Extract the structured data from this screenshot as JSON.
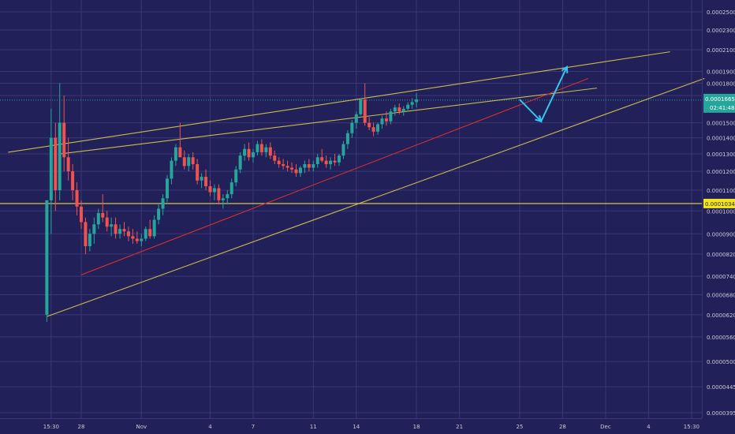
{
  "chart_data": {
    "type": "candlestick",
    "title": "",
    "xlabel": "",
    "ylabel": "",
    "colors": {
      "background": "#222058",
      "grid": "#3a3876",
      "up": "#26a69a",
      "down": "#ef5350",
      "trendline_yellow": "#e6d84a",
      "trendline_red": "#d03030",
      "arrow": "#33c6f0",
      "axis_text": "#c9c9d9",
      "price_tag": "#26a69a",
      "level_tag": "#f5e51c"
    },
    "y_scale": "log",
    "y_range": [
      3.85e-05,
      2.65e-05
    ],
    "y_ticks": [
      "0.00025000",
      "0.00023000",
      "0.00021000",
      "0.00019000",
      "0.00018000",
      "0.00017000",
      "0.00015000",
      "0.00014000",
      "0.00013000",
      "0.00012000",
      "0.00011000",
      "0.00010000",
      "0.00009000",
      "0.00008200",
      "0.00007400",
      "0.00006800",
      "0.00006200",
      "0.00005600",
      "0.00005000",
      "0.00004450",
      "0.00003950"
    ],
    "x_ticks": [
      {
        "label": "15:30",
        "slot": 3
      },
      {
        "label": "28",
        "slot": 10
      },
      {
        "label": "Nov",
        "slot": 24
      },
      {
        "label": "4",
        "slot": 40
      },
      {
        "label": "7",
        "slot": 50
      },
      {
        "label": "11",
        "slot": 64
      },
      {
        "label": "14",
        "slot": 74
      },
      {
        "label": "18",
        "slot": 88
      },
      {
        "label": "21",
        "slot": 98
      },
      {
        "label": "25",
        "slot": 112
      },
      {
        "label": "28",
        "slot": 122
      },
      {
        "label": "Dec",
        "slot": 132
      },
      {
        "label": "4",
        "slot": 142
      },
      {
        "label": "15:30",
        "slot": 152
      }
    ],
    "current_price": {
      "label": "0.00016651",
      "countdown": "02:41:48",
      "value": 0.00016651
    },
    "level": {
      "label": "0.00010345",
      "value": 0.00010345
    },
    "candles": [
      [
        6.2e-05,
        0.000105,
        6e-05,
        0.000105
      ],
      [
        0.000105,
        0.00016,
        9e-05,
        0.00014
      ],
      [
        0.00014,
        0.00015,
        0.0001,
        0.00011
      ],
      [
        0.00011,
        0.00018,
        0.000105,
        0.00015
      ],
      [
        0.00015,
        0.00017,
        0.00012,
        0.000128
      ],
      [
        0.000128,
        0.00014,
        0.000115,
        0.00012
      ],
      [
        0.00012,
        0.000124,
        0.000105,
        0.00011
      ],
      [
        0.00011,
        0.000114,
        9.8e-05,
        0.000102
      ],
      [
        0.000102,
        0.000105,
        9.2e-05,
        9.5e-05
      ],
      [
        9.5e-05,
        9.7e-05,
        8.2e-05,
        8.5e-05
      ],
      [
        8.5e-05,
        9.2e-05,
        8.3e-05,
        9e-05
      ],
      [
        9e-05,
        9.7e-05,
        8.6e-05,
        9.4e-05
      ],
      [
        9.4e-05,
        0.000101,
        9.2e-05,
        9.9e-05
      ],
      [
        9.9e-05,
        0.000108,
        9.5e-05,
        9.7e-05
      ],
      [
        9.7e-05,
        0.0001,
        9.1e-05,
        9.3e-05
      ],
      [
        9.3e-05,
        9.7e-05,
        8.9e-05,
        9.4e-05
      ],
      [
        9.4e-05,
        9.7e-05,
        8.8e-05,
        9e-05
      ],
      [
        9e-05,
        9.4e-05,
        8.8e-05,
        9.2e-05
      ],
      [
        9.2e-05,
        9.5e-05,
        8.9e-05,
        9.1e-05
      ],
      [
        9.1e-05,
        9.3e-05,
        8.7e-05,
        8.9e-05
      ],
      [
        8.9e-05,
        9.2e-05,
        8.6e-05,
        8.8e-05
      ],
      [
        8.8e-05,
        9.1e-05,
        8.6e-05,
        8.7e-05
      ],
      [
        8.7e-05,
        9e-05,
        8.5e-05,
        8.8e-05
      ],
      [
        8.8e-05,
        9.3e-05,
        8.7e-05,
        9.2e-05
      ],
      [
        9.2e-05,
        9.6e-05,
        8.8e-05,
        8.9e-05
      ],
      [
        8.9e-05,
        9.8e-05,
        8.8e-05,
        9.6e-05
      ],
      [
        9.6e-05,
        0.000103,
        9.4e-05,
        0.000101
      ],
      [
        0.000101,
        0.000108,
        9.8e-05,
        0.000106
      ],
      [
        0.000106,
        0.000118,
        0.000104,
        0.000116
      ],
      [
        0.000116,
        0.000128,
        0.000113,
        0.000126
      ],
      [
        0.000126,
        0.000136,
        0.000123,
        0.000134
      ],
      [
        0.000134,
        0.00015,
        0.000128,
        0.000128
      ],
      [
        0.000128,
        0.000132,
        0.000121,
        0.000123
      ],
      [
        0.000123,
        0.00013,
        0.00012,
        0.000128
      ],
      [
        0.000128,
        0.000131,
        0.000121,
        0.000124
      ],
      [
        0.000124,
        0.000127,
        0.000113,
        0.000115
      ],
      [
        0.000115,
        0.000119,
        0.000111,
        0.000117
      ],
      [
        0.000117,
        0.000121,
        0.00011,
        0.000112
      ],
      [
        0.000112,
        0.000115,
        0.000107,
        0.000109
      ],
      [
        0.000109,
        0.000113,
        0.000105,
        0.000111
      ],
      [
        0.000111,
        0.000113,
        0.000103,
        0.000105
      ],
      [
        0.000105,
        0.000108,
        0.000101,
        0.000106
      ],
      [
        0.000106,
        0.00011,
        0.000103,
        0.000108
      ],
      [
        0.000108,
        0.000116,
        0.000106,
        0.000114
      ],
      [
        0.000114,
        0.000123,
        0.000112,
        0.000121
      ],
      [
        0.000121,
        0.000131,
        0.000119,
        0.000129
      ],
      [
        0.000129,
        0.000136,
        0.000126,
        0.000133
      ],
      [
        0.000133,
        0.000137,
        0.000126,
        0.000128
      ],
      [
        0.000128,
        0.000133,
        0.000125,
        0.000131
      ],
      [
        0.000131,
        0.000138,
        0.000129,
        0.000136
      ],
      [
        0.000136,
        0.000139,
        0.000129,
        0.000131
      ],
      [
        0.000131,
        0.000136,
        0.000128,
        0.000134
      ],
      [
        0.000134,
        0.000137,
        0.000127,
        0.000129
      ],
      [
        0.000129,
        0.000132,
        0.000124,
        0.000126
      ],
      [
        0.000126,
        0.000128,
        0.000122,
        0.000124
      ],
      [
        0.000124,
        0.000127,
        0.000121,
        0.000123
      ],
      [
        0.000123,
        0.000126,
        0.00012,
        0.000122
      ],
      [
        0.000122,
        0.000125,
        0.000119,
        0.000121
      ],
      [
        0.000121,
        0.000124,
        0.000117,
        0.000119
      ],
      [
        0.000119,
        0.000123,
        0.000117,
        0.000122
      ],
      [
        0.000122,
        0.000126,
        0.000119,
        0.000124
      ],
      [
        0.000124,
        0.000127,
        0.00012,
        0.000122
      ],
      [
        0.000122,
        0.000126,
        0.00012,
        0.000124
      ],
      [
        0.000124,
        0.00013,
        0.000122,
        0.000128
      ],
      [
        0.000128,
        0.000133,
        0.000125,
        0.000126
      ],
      [
        0.000126,
        0.000129,
        0.000122,
        0.000124
      ],
      [
        0.000124,
        0.000128,
        0.000121,
        0.000126
      ],
      [
        0.000126,
        0.00013,
        0.000123,
        0.000125
      ],
      [
        0.000125,
        0.00013,
        0.000123,
        0.000129
      ],
      [
        0.000129,
        0.000138,
        0.000127,
        0.000136
      ],
      [
        0.000136,
        0.000145,
        0.000133,
        0.000143
      ],
      [
        0.000143,
        0.000152,
        0.00014,
        0.00015
      ],
      [
        0.00015,
        0.000158,
        0.000146,
        0.000156
      ],
      [
        0.000156,
        0.000168,
        0.000155,
        0.000167
      ],
      [
        0.000167,
        0.00018,
        0.000148,
        0.00015
      ],
      [
        0.00015,
        0.000154,
        0.000145,
        0.000147
      ],
      [
        0.000147,
        0.00015,
        0.000141,
        0.000144
      ],
      [
        0.000144,
        0.00015,
        0.000142,
        0.000149
      ],
      [
        0.000149,
        0.000155,
        0.000146,
        0.000153
      ],
      [
        0.000153,
        0.000158,
        0.000148,
        0.000151
      ],
      [
        0.000151,
        0.00016,
        0.000149,
        0.000158
      ],
      [
        0.000158,
        0.000163,
        0.000155,
        0.000161
      ],
      [
        0.000161,
        0.000164,
        0.000156,
        0.000158
      ],
      [
        0.000158,
        0.000162,
        0.000155,
        0.00016
      ],
      [
        0.00016,
        0.000165,
        0.000158,
        0.000163
      ],
      [
        0.000163,
        0.000168,
        0.00016,
        0.000165
      ],
      [
        0.000165,
        0.000172,
        0.000161,
        0.000167
      ]
    ],
    "candle_start_slot": 2,
    "drawings": {
      "yellow_lines": [
        {
          "from": {
            "slot": -7,
            "value": 0.000131
          },
          "to": {
            "slot": 147,
            "value": 0.000208
          }
        },
        {
          "from": {
            "slot": 5,
            "value": 0.00013
          },
          "to": {
            "slot": 130,
            "value": 0.000176
          }
        },
        {
          "from": {
            "slot": 2,
            "value": 6.15e-05
          },
          "to": {
            "slot": 155,
            "value": 0.000184
          }
        }
      ],
      "red_line": {
        "from": {
          "slot": 10,
          "value": 7.45e-05
        },
        "to": {
          "slot": 128,
          "value": 0.000184
        }
      },
      "arrow_path": [
        {
          "slot": 112,
          "value": 0.000167
        },
        {
          "slot": 117,
          "value": 0.000151
        },
        {
          "slot": 123,
          "value": 0.000194
        }
      ]
    }
  }
}
